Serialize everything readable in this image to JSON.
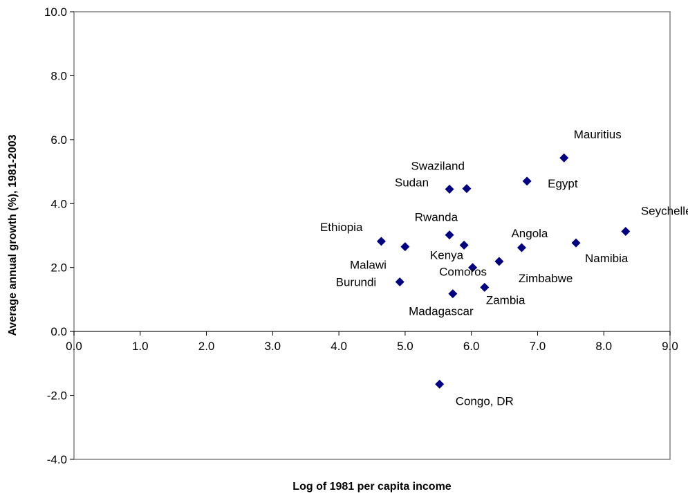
{
  "chart_data": {
    "type": "scatter",
    "xlabel": "Log of 1981 per capita income",
    "ylabel": "Average annual growth (%), 1981-2003",
    "xlim": [
      0,
      9
    ],
    "ylim": [
      -4,
      10
    ],
    "x_ticks": [
      "0.0",
      "1.0",
      "2.0",
      "3.0",
      "4.0",
      "5.0",
      "6.0",
      "7.0",
      "8.0",
      "9.0"
    ],
    "y_ticks": [
      "-4.0",
      "-2.0",
      "0.0",
      "2.0",
      "4.0",
      "6.0",
      "8.0",
      "10.0"
    ],
    "grid": false,
    "marker": "diamond",
    "marker_color": "#000080",
    "points": [
      {
        "label": "Mauritius",
        "x": 7.4,
        "y": 5.43
      },
      {
        "label": "Egypt",
        "x": 6.84,
        "y": 4.7
      },
      {
        "label": "Swaziland",
        "x": 5.93,
        "y": 4.47
      },
      {
        "label": "Sudan",
        "x": 5.67,
        "y": 4.45
      },
      {
        "label": "Seychelles",
        "x": 8.33,
        "y": 3.13
      },
      {
        "label": "Rwanda",
        "x": 5.67,
        "y": 3.02
      },
      {
        "label": "Ethiopia",
        "x": 4.64,
        "y": 2.82
      },
      {
        "label": "Namibia",
        "x": 7.58,
        "y": 2.77
      },
      {
        "label": "Kenya",
        "x": 5.89,
        "y": 2.7
      },
      {
        "label": "Malawi",
        "x": 5.0,
        "y": 2.65
      },
      {
        "label": "Angola",
        "x": 6.76,
        "y": 2.62
      },
      {
        "label": "Zimbabwe",
        "x": 6.42,
        "y": 2.19
      },
      {
        "label": "Comoros",
        "x": 6.02,
        "y": 2.0
      },
      {
        "label": "Burundi",
        "x": 4.92,
        "y": 1.55
      },
      {
        "label": "Zambia",
        "x": 6.2,
        "y": 1.38
      },
      {
        "label": "Madagascar",
        "x": 5.72,
        "y": 1.18
      },
      {
        "label": "Congo, DR",
        "x": 5.52,
        "y": -1.65
      }
    ]
  }
}
